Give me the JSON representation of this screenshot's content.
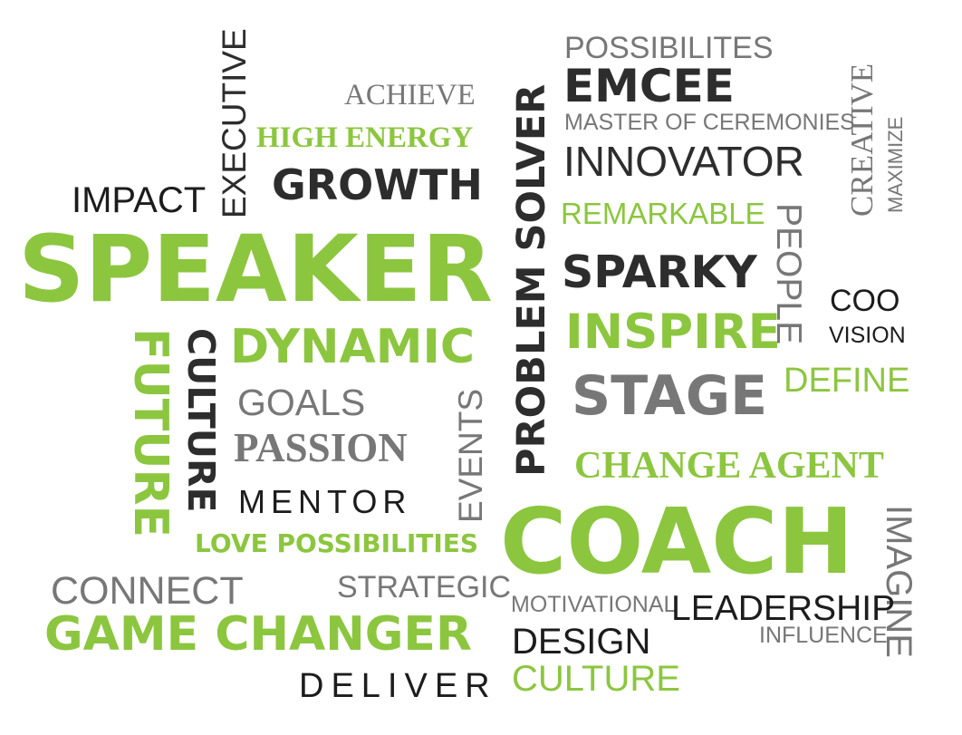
{
  "words": {
    "possibilites": "POSSIBILITES",
    "emcee": "EMCEE",
    "achieve": "ACHIEVE",
    "master_of_ceremonies": "MASTER OF CEREMONIES",
    "high_energy": "HIGH ENERGY",
    "innovator": "INNOVATOR",
    "growth": "GROWTH",
    "impact": "IMPACT",
    "executive": "EXECUTIVE",
    "creative": "CREATIVE",
    "maximize": "MAXIMIZE",
    "remarkable": "REMARKABLE",
    "people": "PEOPLE",
    "speaker": "SPEAKER",
    "problem_solver": "PROBLEM SOLVER",
    "sparky": "SPARKY",
    "coo": "COO",
    "vision": "VISION",
    "inspire": "INSPIRE",
    "future": "FUTURE",
    "culture_vertical": "CULTURE",
    "dynamic": "DYNAMIC",
    "define": "DEFINE",
    "goals": "GOALS",
    "stage": "STAGE",
    "events": "EVENTS",
    "passion": "PASSION",
    "change_agent": "CHANGE AGENT",
    "mentor": "MENTOR",
    "coach": "COACH",
    "imagine": "IMAGINE",
    "love_possibilities": "LOVE POSSIBILITIES",
    "connect": "CONNECT",
    "strategic": "STRATEGIC",
    "motivational": "MOTIVATIONAL",
    "leadership": "LEADERSHIP",
    "game_changer": "GAME CHANGER",
    "influence": "INFLUENCE",
    "design": "DESIGN",
    "deliver": "DELIVER",
    "culture_bottom": "CULTURE"
  },
  "colors": {
    "green": "#8cc63f",
    "dark": "#2d2d2d",
    "gray": "#777777"
  }
}
